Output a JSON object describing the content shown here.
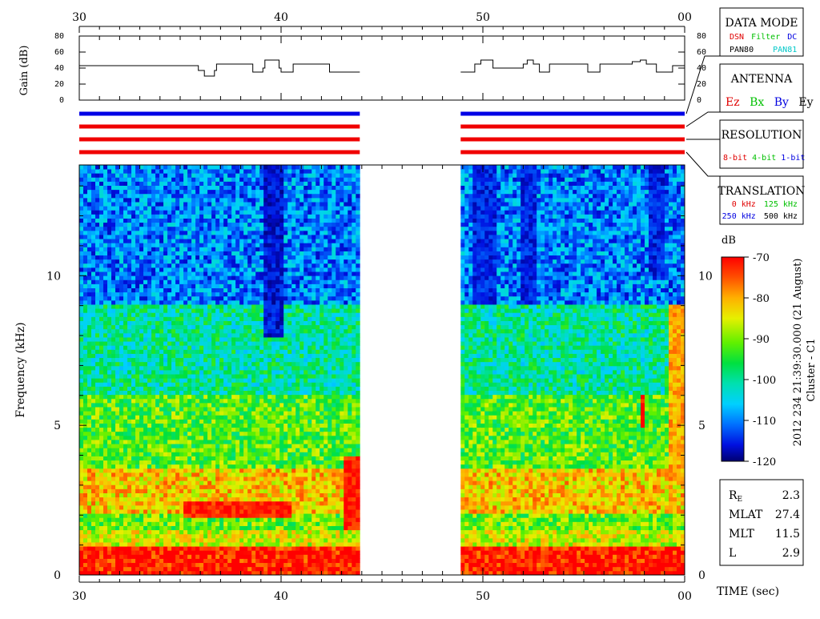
{
  "time_axis": {
    "ticks": [
      {
        "t": 0,
        "label": "30"
      },
      {
        "t": 10,
        "label": "40"
      },
      {
        "t": 20,
        "label": "50"
      },
      {
        "t": 30,
        "label": "00"
      }
    ],
    "xlabel": "TIME (sec)"
  },
  "gain_panel": {
    "ylabel": "Gain (dB)",
    "ylim": [
      0,
      80
    ],
    "ticks": [
      "0",
      "20",
      "40",
      "60",
      "80"
    ],
    "tick_values": [
      0,
      20,
      40,
      60,
      80
    ]
  },
  "frequency_panel": {
    "ylabel": "Frequency (kHz)",
    "ylim": [
      0,
      13.7
    ],
    "ticks": [
      "0",
      "5",
      "10"
    ],
    "tick_values": [
      0,
      5,
      10
    ]
  },
  "data_mode_box": {
    "title": "DATA MODE",
    "items": [
      {
        "label": "DSN",
        "color": "#e00000"
      },
      {
        "label": "Filter",
        "color": "#00c000"
      },
      {
        "label": "DC",
        "color": "#0000e0"
      },
      {
        "label": "PAN80",
        "color": "#000000"
      },
      {
        "label": "PAN81",
        "color": "#00c8c8"
      }
    ]
  },
  "antenna_box": {
    "title": "ANTENNA",
    "items": [
      {
        "label": "Ez",
        "color": "#e00000"
      },
      {
        "label": "Bx",
        "color": "#00c000"
      },
      {
        "label": "By",
        "color": "#0000e0"
      },
      {
        "label": "Ey",
        "color": "#000000"
      }
    ]
  },
  "resolution_box": {
    "title": "RESOLUTION",
    "items": [
      {
        "label": "8-bit",
        "color": "#e00000"
      },
      {
        "label": "4-bit",
        "color": "#00c000"
      },
      {
        "label": "1-bit",
        "color": "#0000e0"
      }
    ]
  },
  "translation_box": {
    "title": "TRANSLATION",
    "items": [
      {
        "label": "0 kHz",
        "color": "#e00000"
      },
      {
        "label": "125 kHz",
        "color": "#00c000"
      },
      {
        "label": "250 kHz",
        "color": "#0000e0"
      },
      {
        "label": "500 kHz",
        "color": "#000000"
      }
    ]
  },
  "colorbar": {
    "unit": "dB",
    "range": [
      -120,
      -70
    ],
    "ticks": [
      "-70",
      "-80",
      "-90",
      "-100",
      "-110",
      "-120"
    ],
    "tick_values": [
      -70,
      -80,
      -90,
      -100,
      -110,
      -120
    ]
  },
  "caption": {
    "timestamp": "2012 234 21:39:30.000 (21 August)",
    "spacecraft": "Cluster - C1"
  },
  "ephemeris": [
    {
      "label": "R",
      "sub": "E",
      "value": "2.3"
    },
    {
      "label": "MLAT",
      "sub": "",
      "value": "27.4"
    },
    {
      "label": "MLT",
      "sub": "",
      "value": "11.5"
    },
    {
      "label": "L",
      "sub": "",
      "value": "2.9"
    }
  ],
  "colors": {
    "antenna_Ez": "#f00000",
    "antenna_By": "#0000e6"
  },
  "chart_data": {
    "type": "heatmap",
    "x_unit": "seconds after 21:39:30",
    "y_unit": "kHz",
    "z_unit": "dB",
    "data_segments": [
      [
        0,
        13.9
      ],
      [
        18.9,
        30
      ]
    ],
    "gap": [
      13.9,
      18.9
    ],
    "gain_series": {
      "segments": [
        [
          [
            0,
            43
          ],
          [
            5.9,
            43
          ],
          [
            5.9,
            37
          ],
          [
            6.2,
            37
          ],
          [
            6.2,
            30
          ],
          [
            6.7,
            30
          ],
          [
            6.7,
            37
          ],
          [
            6.8,
            37
          ],
          [
            6.8,
            45
          ],
          [
            8.6,
            45
          ],
          [
            8.6,
            35
          ],
          [
            9.1,
            35
          ],
          [
            9.1,
            40
          ],
          [
            9.2,
            40
          ],
          [
            9.2,
            50
          ],
          [
            9.9,
            50
          ],
          [
            9.9,
            40
          ],
          [
            10,
            40
          ],
          [
            10,
            35
          ],
          [
            10.6,
            35
          ],
          [
            10.6,
            45
          ],
          [
            12.4,
            45
          ],
          [
            12.4,
            35
          ],
          [
            13.9,
            35
          ]
        ],
        [
          [
            18.9,
            35
          ],
          [
            19.6,
            35
          ],
          [
            19.6,
            45
          ],
          [
            19.9,
            45
          ],
          [
            19.9,
            50
          ],
          [
            20.5,
            50
          ],
          [
            20.5,
            40
          ],
          [
            22,
            40
          ],
          [
            22,
            45
          ],
          [
            22.2,
            45
          ],
          [
            22.2,
            50
          ],
          [
            22.5,
            50
          ],
          [
            22.5,
            45
          ],
          [
            22.8,
            45
          ],
          [
            22.8,
            35
          ],
          [
            23.3,
            35
          ],
          [
            23.3,
            45
          ],
          [
            25.2,
            45
          ],
          [
            25.2,
            35
          ],
          [
            25.8,
            35
          ],
          [
            25.8,
            45
          ],
          [
            27.4,
            45
          ],
          [
            27.4,
            48
          ],
          [
            27.8,
            48
          ],
          [
            27.8,
            50
          ],
          [
            28.1,
            50
          ],
          [
            28.1,
            45
          ],
          [
            28.6,
            45
          ],
          [
            28.6,
            35
          ],
          [
            29.4,
            35
          ],
          [
            29.4,
            43
          ],
          [
            30,
            43
          ]
        ]
      ]
    },
    "antenna_series": [
      {
        "segments": [
          [
            0,
            13.9
          ],
          [
            18.9,
            30
          ]
        ],
        "color": "By"
      },
      {
        "segments": [
          [
            0,
            13.9
          ],
          [
            18.9,
            30
          ]
        ],
        "color": "Ez"
      },
      {
        "segments": [
          [
            0,
            13.9
          ],
          [
            18.9,
            30
          ]
        ],
        "color": "Ez"
      },
      {
        "segments": [
          [
            0,
            13.9
          ],
          [
            18.9,
            30
          ]
        ],
        "color": "Ez"
      }
    ],
    "intensity_bands": [
      {
        "f": [
          0,
          0.9
        ],
        "db": -71
      },
      {
        "f": [
          0.9,
          1.5
        ],
        "db": -86
      },
      {
        "f": [
          1.5,
          2.0
        ],
        "db": -91
      },
      {
        "f": [
          2.0,
          3.5
        ],
        "db": -82
      },
      {
        "f": [
          3.5,
          6.0
        ],
        "db": -92
      },
      {
        "f": [
          6.0,
          9.0
        ],
        "db": -100
      },
      {
        "f": [
          9.0,
          13.7
        ],
        "db": -110
      }
    ],
    "dark_stripes": [
      {
        "t": 9.6,
        "width": 0.5,
        "f": [
          8,
          13.7
        ],
        "db": -119
      },
      {
        "t": 20,
        "width": 0.6,
        "f": [
          9,
          13.7
        ],
        "db": -118
      },
      {
        "t": 22.3,
        "width": 0.4,
        "f": [
          9,
          13.7
        ],
        "db": -118
      },
      {
        "t": 28.7,
        "width": 0.4,
        "f": [
          10,
          13.7
        ],
        "db": -118
      }
    ],
    "bright_features": [
      {
        "t": [
          5.1,
          10.5
        ],
        "f": [
          1.9,
          2.5
        ],
        "db": -72
      },
      {
        "t": [
          13.2,
          13.9
        ],
        "f": [
          1.5,
          4.0
        ],
        "db": -72
      },
      {
        "t": [
          29.2,
          30
        ],
        "f": [
          3.0,
          9.0
        ],
        "db": -80
      },
      {
        "t": [
          27.9,
          28.1
        ],
        "f": [
          5.0,
          6.0
        ],
        "db": -70
      }
    ]
  }
}
